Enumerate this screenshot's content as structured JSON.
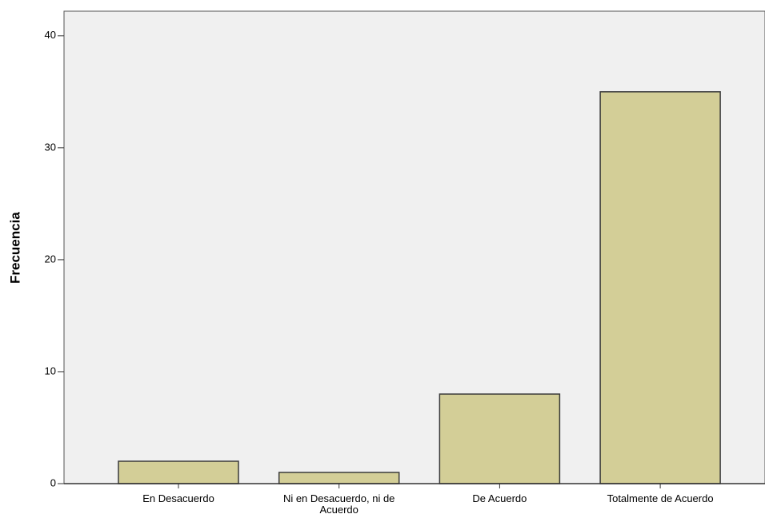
{
  "chart_data": {
    "type": "bar",
    "y_label": "Frecuencia",
    "categories": [
      "En Desacuerdo",
      "Ni en Desacuerdo, ni de Acuerdo",
      "De Acuerdo",
      "Totalmente de Acuerdo"
    ],
    "values": [
      2,
      1,
      8,
      35
    ],
    "color": "#d3ce97",
    "ylim": [
      0,
      42.2
    ],
    "yticks": [
      0,
      10,
      20,
      30,
      40
    ],
    "grid": false
  }
}
